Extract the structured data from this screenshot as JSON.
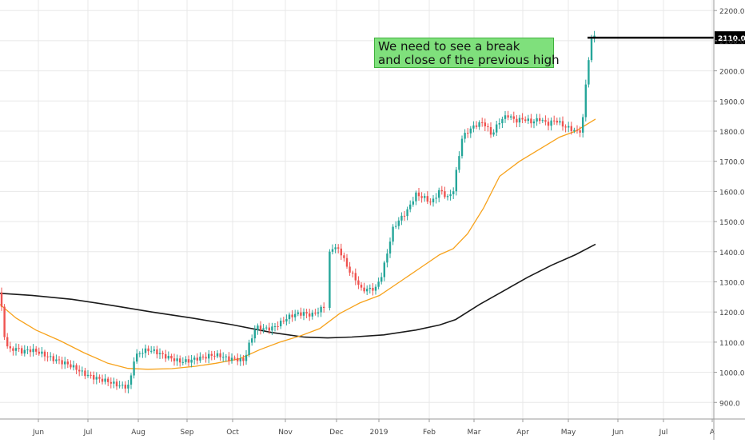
{
  "chart_data": {
    "type": "candlestick",
    "x_ticks": [
      "Jun",
      "Jul",
      "Aug",
      "Sep",
      "Oct",
      "Nov",
      "Dec",
      "2019",
      "Feb",
      "Mar",
      "Apr",
      "May",
      "Jun",
      "Jul",
      "A"
    ],
    "y_ticks": [
      "900.0",
      "1000.0",
      "1100.0",
      "1200.0",
      "1300.0",
      "1400.0",
      "1500.0",
      "1600.0",
      "1700.0",
      "1800.0",
      "1900.0",
      "2000.0",
      "2100.0",
      "2200.0"
    ],
    "ylim": [
      845,
      2235
    ],
    "price_label": "2110.0",
    "resistance_level": 2110,
    "colors": {
      "up": "#26a69a",
      "down": "#ef5350",
      "ma_short": "#f7a21b",
      "ma_long": "#1a1a1a",
      "resistance": "#000000",
      "grid": "#e8e8e8",
      "label_bg": "#000000",
      "annotation_bg": "#7fe07c"
    },
    "annotation": {
      "line1": "We need to see a break",
      "line2": "and close of the previous high"
    },
    "price_series": [
      [
        0,
        1265
      ],
      [
        6,
        1110
      ],
      [
        12,
        1070
      ],
      [
        20,
        1075
      ],
      [
        28,
        1060
      ],
      [
        36,
        1065
      ],
      [
        45,
        1060
      ],
      [
        55,
        1050
      ],
      [
        65,
        1040
      ],
      [
        75,
        1035
      ],
      [
        85,
        1030
      ],
      [
        95,
        1020
      ],
      [
        105,
        1005
      ],
      [
        115,
        995
      ],
      [
        125,
        985
      ],
      [
        135,
        975
      ],
      [
        145,
        960
      ],
      [
        155,
        948
      ],
      [
        162,
        950
      ],
      [
        168,
        1040
      ],
      [
        175,
        1055
      ],
      [
        185,
        1065
      ],
      [
        195,
        1060
      ],
      [
        205,
        1050
      ],
      [
        215,
        1045
      ],
      [
        225,
        1040
      ],
      [
        235,
        1045
      ],
      [
        245,
        1055
      ],
      [
        255,
        1060
      ],
      [
        265,
        1065
      ],
      [
        275,
        1060
      ],
      [
        285,
        1045
      ],
      [
        295,
        1040
      ],
      [
        305,
        1030
      ],
      [
        312,
        1085
      ],
      [
        320,
        1140
      ],
      [
        330,
        1135
      ],
      [
        340,
        1140
      ],
      [
        350,
        1160
      ],
      [
        360,
        1185
      ],
      [
        370,
        1200
      ],
      [
        380,
        1205
      ],
      [
        390,
        1200
      ],
      [
        400,
        1215
      ],
      [
        407,
        1230
      ],
      [
        410,
        1380
      ],
      [
        415,
        1420
      ],
      [
        425,
        1405
      ],
      [
        435,
        1340
      ],
      [
        445,
        1300
      ],
      [
        452,
        1265
      ],
      [
        460,
        1265
      ],
      [
        470,
        1270
      ],
      [
        478,
        1320
      ],
      [
        485,
        1400
      ],
      [
        492,
        1480
      ],
      [
        500,
        1510
      ],
      [
        510,
        1545
      ],
      [
        520,
        1600
      ],
      [
        530,
        1590
      ],
      [
        540,
        1570
      ],
      [
        550,
        1610
      ],
      [
        560,
        1580
      ],
      [
        567,
        1600
      ],
      [
        572,
        1680
      ],
      [
        578,
        1770
      ],
      [
        585,
        1790
      ],
      [
        595,
        1810
      ],
      [
        605,
        1820
      ],
      [
        615,
        1780
      ],
      [
        625,
        1830
      ],
      [
        635,
        1855
      ],
      [
        645,
        1840
      ],
      [
        655,
        1850
      ],
      [
        665,
        1840
      ],
      [
        675,
        1850
      ],
      [
        685,
        1830
      ],
      [
        695,
        1840
      ],
      [
        705,
        1815
      ],
      [
        715,
        1800
      ],
      [
        722,
        1790
      ],
      [
        728,
        1795
      ],
      [
        733,
        1950
      ],
      [
        738,
        2070
      ],
      [
        742,
        2110
      ]
    ],
    "ma_short": [
      [
        0,
        1225
      ],
      [
        20,
        1180
      ],
      [
        45,
        1140
      ],
      [
        75,
        1105
      ],
      [
        105,
        1065
      ],
      [
        135,
        1030
      ],
      [
        160,
        1013
      ],
      [
        185,
        1010
      ],
      [
        215,
        1012
      ],
      [
        245,
        1020
      ],
      [
        270,
        1030
      ],
      [
        300,
        1045
      ],
      [
        325,
        1075
      ],
      [
        350,
        1100
      ],
      [
        375,
        1120
      ],
      [
        400,
        1145
      ],
      [
        425,
        1195
      ],
      [
        450,
        1230
      ],
      [
        475,
        1255
      ],
      [
        500,
        1300
      ],
      [
        525,
        1345
      ],
      [
        550,
        1390
      ],
      [
        567,
        1410
      ],
      [
        585,
        1460
      ],
      [
        605,
        1545
      ],
      [
        625,
        1650
      ],
      [
        650,
        1700
      ],
      [
        675,
        1740
      ],
      [
        700,
        1780
      ],
      [
        720,
        1800
      ],
      [
        745,
        1840
      ]
    ],
    "ma_long": [
      [
        0,
        1262
      ],
      [
        40,
        1255
      ],
      [
        90,
        1242
      ],
      [
        140,
        1222
      ],
      [
        190,
        1200
      ],
      [
        240,
        1180
      ],
      [
        290,
        1158
      ],
      [
        340,
        1132
      ],
      [
        380,
        1117
      ],
      [
        410,
        1114
      ],
      [
        440,
        1117
      ],
      [
        480,
        1124
      ],
      [
        520,
        1140
      ],
      [
        550,
        1157
      ],
      [
        570,
        1175
      ],
      [
        600,
        1225
      ],
      [
        630,
        1270
      ],
      [
        660,
        1315
      ],
      [
        690,
        1355
      ],
      [
        720,
        1390
      ],
      [
        745,
        1425
      ]
    ]
  }
}
